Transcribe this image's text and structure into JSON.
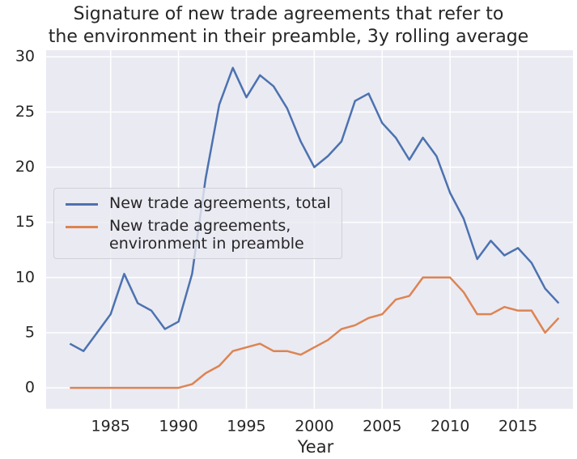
{
  "chart_data": {
    "type": "line",
    "title": "Signature of new trade agreements that refer to\nthe environment in their preamble, 3y rolling average",
    "xlabel": "Year",
    "x": [
      1982,
      1983,
      1984,
      1985,
      1986,
      1987,
      1988,
      1989,
      1990,
      1991,
      1992,
      1993,
      1994,
      1995,
      1996,
      1997,
      1998,
      1999,
      2000,
      2001,
      2002,
      2003,
      2004,
      2005,
      2006,
      2007,
      2008,
      2009,
      2010,
      2011,
      2012,
      2013,
      2014,
      2015,
      2016,
      2017,
      2018
    ],
    "series": [
      {
        "name": "New trade agreements, total",
        "color": "#4c72b0",
        "values": [
          4.0,
          3.33,
          5.0,
          6.67,
          10.33,
          7.67,
          7.0,
          5.33,
          6.0,
          10.33,
          19.0,
          25.67,
          29.0,
          26.33,
          28.33,
          27.33,
          25.33,
          22.33,
          20.0,
          21.0,
          22.33,
          26.0,
          26.67,
          24.0,
          22.67,
          20.67,
          22.67,
          21.0,
          17.67,
          15.33,
          11.67,
          13.33,
          12.0,
          12.67,
          11.33,
          9.0,
          7.67
        ]
      },
      {
        "name": "New trade agreements,\nenvironment in preamble",
        "color": "#dd8452",
        "values": [
          0,
          0,
          0,
          0,
          0,
          0,
          0,
          0,
          0,
          0.33,
          1.33,
          2.0,
          3.33,
          3.67,
          4.0,
          3.33,
          3.33,
          3.0,
          3.67,
          4.33,
          5.33,
          5.67,
          6.33,
          6.67,
          8.0,
          8.33,
          10.0,
          10.0,
          10.0,
          8.67,
          6.67,
          6.67,
          7.33,
          7.0,
          7.0,
          5.0,
          6.33
        ]
      }
    ],
    "xlim": [
      1980.25,
      2019.05
    ],
    "xticks": [
      1985,
      1990,
      1995,
      2000,
      2005,
      2010,
      2015
    ],
    "ylim": [
      -1.9,
      30.6
    ],
    "yticks": [
      0,
      5,
      10,
      15,
      20,
      25,
      30
    ],
    "grid": true,
    "legend": "center left"
  }
}
